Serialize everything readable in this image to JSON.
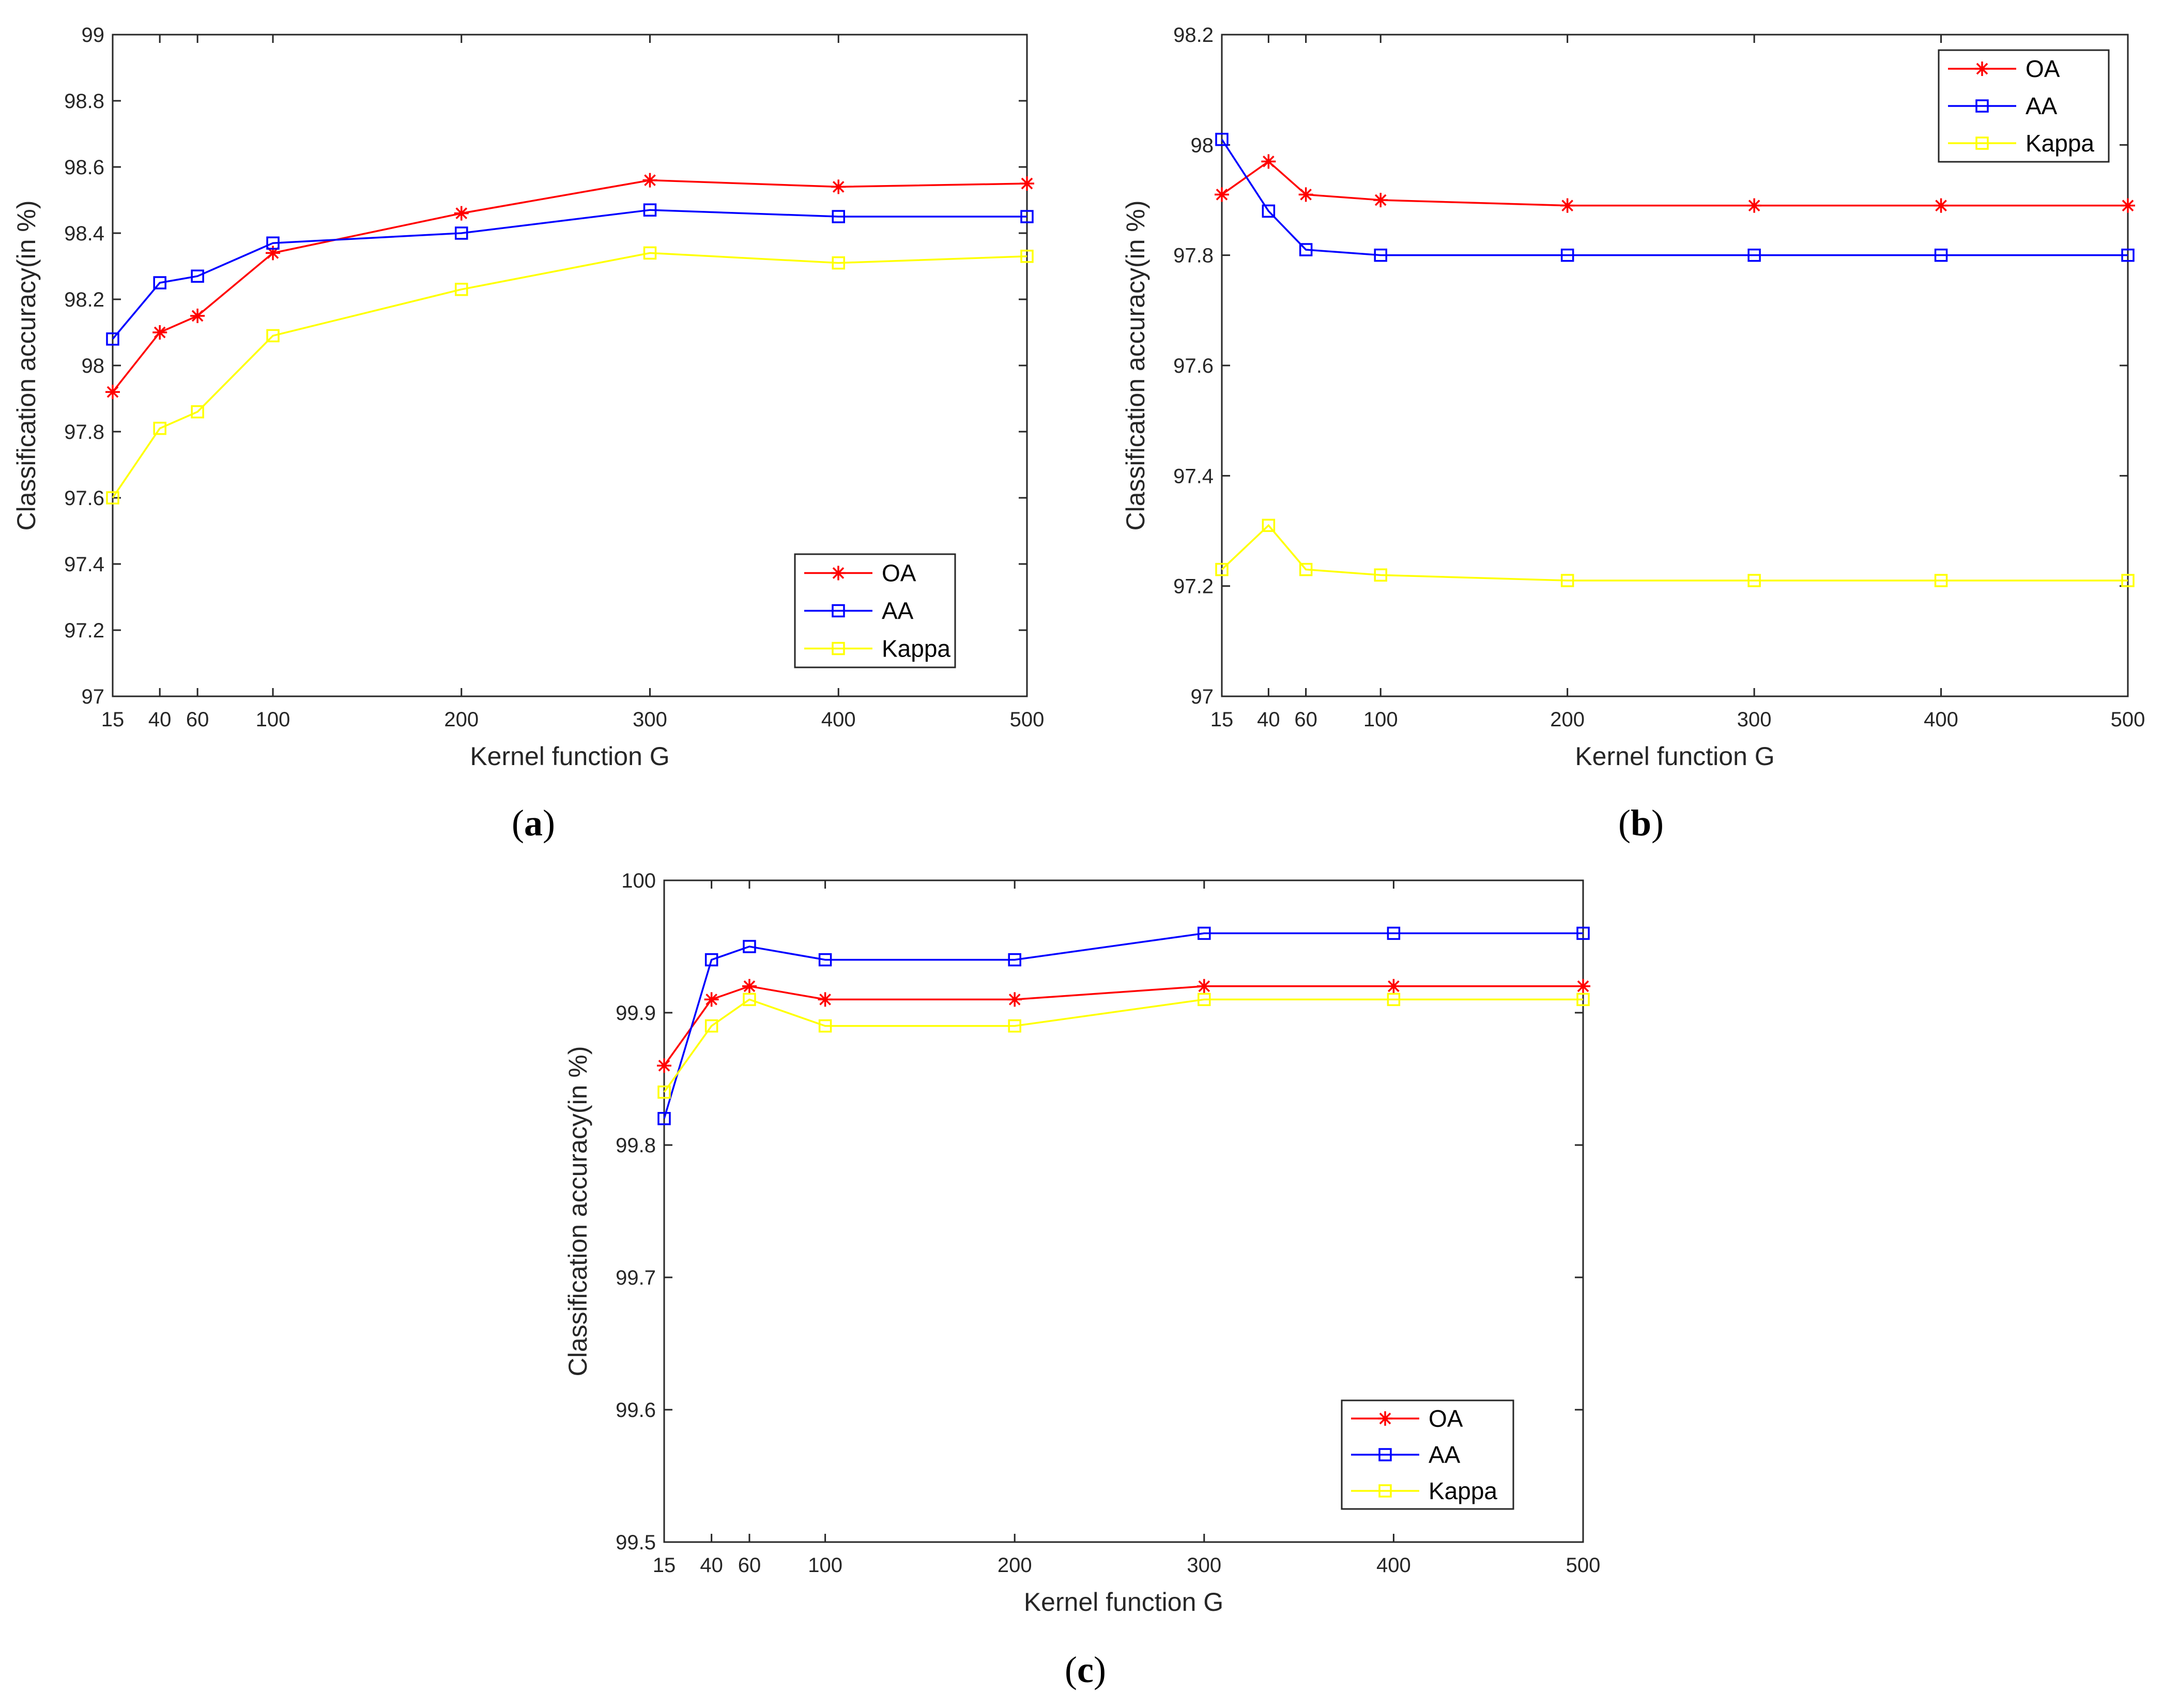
{
  "chart_data": [
    {
      "panel": "a",
      "caption": "a",
      "type": "line",
      "xlabel": "Kernel function G",
      "ylabel": "Classification accuracy(in %)",
      "x": [
        15,
        40,
        60,
        100,
        200,
        300,
        400,
        500
      ],
      "xticks": [
        "15",
        "40",
        "60",
        "100",
        "200",
        "300",
        "400",
        "500"
      ],
      "xlim": [
        15,
        500
      ],
      "ylim": [
        97,
        99
      ],
      "yticks": [
        "97",
        "97.2",
        "97.4",
        "97.6",
        "97.8",
        "98",
        "98.2",
        "98.4",
        "98.6",
        "98.8",
        "99"
      ],
      "legend_position": "bottom-right",
      "series": [
        {
          "name": "OA",
          "color": "#ff0000",
          "marker": "asterisk",
          "values": [
            97.92,
            98.1,
            98.15,
            98.34,
            98.46,
            98.56,
            98.54,
            98.55
          ]
        },
        {
          "name": "AA",
          "color": "#0000ff",
          "marker": "square",
          "values": [
            98.08,
            98.25,
            98.27,
            98.37,
            98.4,
            98.47,
            98.45,
            98.45
          ]
        },
        {
          "name": "Kappa",
          "color": "#ffff00",
          "marker": "square",
          "values": [
            97.6,
            97.81,
            97.86,
            98.09,
            98.23,
            98.34,
            98.31,
            98.33
          ]
        }
      ]
    },
    {
      "panel": "b",
      "caption": "b",
      "type": "line",
      "xlabel": "Kernel function G",
      "ylabel": "Classification accuracy(in %)",
      "x": [
        15,
        40,
        60,
        100,
        200,
        300,
        400,
        500
      ],
      "xticks": [
        "15",
        "40",
        "60",
        "100",
        "200",
        "300",
        "400",
        "500"
      ],
      "xlim": [
        15,
        500
      ],
      "ylim": [
        97,
        98.2
      ],
      "yticks": [
        "97",
        "97.2",
        "97.4",
        "97.6",
        "97.8",
        "98",
        "98.2"
      ],
      "legend_position": "top-right",
      "series": [
        {
          "name": "OA",
          "color": "#ff0000",
          "marker": "asterisk",
          "values": [
            97.91,
            97.97,
            97.91,
            97.9,
            97.89,
            97.89,
            97.89,
            97.89
          ]
        },
        {
          "name": "AA",
          "color": "#0000ff",
          "marker": "square",
          "values": [
            98.01,
            97.88,
            97.81,
            97.8,
            97.8,
            97.8,
            97.8,
            97.8
          ]
        },
        {
          "name": "Kappa",
          "color": "#ffff00",
          "marker": "square",
          "values": [
            97.23,
            97.31,
            97.23,
            97.22,
            97.21,
            97.21,
            97.21,
            97.21
          ]
        }
      ]
    },
    {
      "panel": "c",
      "caption": "c",
      "type": "line",
      "xlabel": "Kernel function G",
      "ylabel": "Classification accuracy(in %)",
      "x": [
        15,
        40,
        60,
        100,
        200,
        300,
        400,
        500
      ],
      "xticks": [
        "15",
        "40",
        "60",
        "100",
        "200",
        "300",
        "400",
        "500"
      ],
      "xlim": [
        15,
        500
      ],
      "ylim": [
        99.5,
        100
      ],
      "yticks": [
        "99.5",
        "99.6",
        "99.7",
        "99.8",
        "99.9",
        "100"
      ],
      "legend_position": "bottom-right",
      "series": [
        {
          "name": "OA",
          "color": "#ff0000",
          "marker": "asterisk",
          "values": [
            99.86,
            99.91,
            99.92,
            99.91,
            99.91,
            99.92,
            99.92,
            99.92
          ]
        },
        {
          "name": "AA",
          "color": "#0000ff",
          "marker": "square",
          "values": [
            99.82,
            99.94,
            99.95,
            99.94,
            99.94,
            99.96,
            99.96,
            99.96
          ]
        },
        {
          "name": "Kappa",
          "color": "#ffff00",
          "marker": "square",
          "values": [
            99.84,
            99.89,
            99.91,
            99.89,
            99.89,
            99.91,
            99.91,
            99.91
          ]
        }
      ]
    }
  ]
}
